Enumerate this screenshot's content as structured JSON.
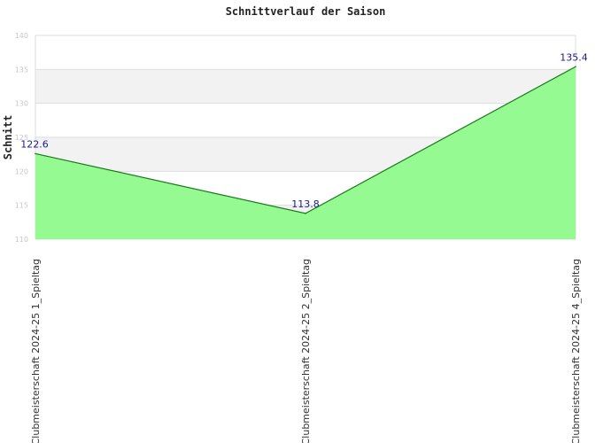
{
  "chart_data": {
    "type": "area",
    "title": "Schnittverlauf der Saison",
    "xlabel": "",
    "ylabel": "Schnitt",
    "categories": [
      "Clubmeisterschaft 2024-25   1_Spieltag",
      "Clubmeisterschaft 2024-25   2_Spieltag",
      "Clubmeisterschaft 2024-25   4_Spieltag"
    ],
    "values": [
      122.6,
      113.8,
      135.4
    ],
    "ylim": [
      110,
      140
    ],
    "yticks": [
      110,
      115,
      120,
      125,
      130,
      135,
      140
    ],
    "grid": true,
    "legend": "none",
    "colors": {
      "fill": "#90fa8c",
      "line": "#1a7a1a",
      "band": "#f2f2f2",
      "grid": "#dddddd",
      "data_label": "#1a1a8c"
    }
  }
}
